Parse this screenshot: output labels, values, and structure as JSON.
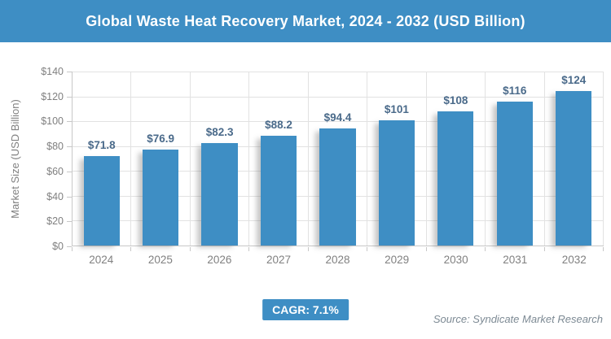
{
  "header": {
    "title": "Global Waste Heat Recovery Market, 2024 - 2032 (USD Billion)"
  },
  "chart_data": {
    "type": "bar",
    "title": "Global Waste Heat Recovery Market, 2024 - 2032 (USD Billion)",
    "categories": [
      "2024",
      "2025",
      "2026",
      "2027",
      "2028",
      "2029",
      "2030",
      "2031",
      "2032"
    ],
    "values": [
      71.8,
      76.9,
      82.3,
      88.2,
      94.4,
      101,
      108,
      116,
      124
    ],
    "value_labels": [
      "$71.8",
      "$76.9",
      "$82.3",
      "$88.2",
      "$94.4",
      "$101",
      "$108",
      "$116",
      "$124"
    ],
    "xlabel": "",
    "ylabel": "Market Size (USD Billion)",
    "ylim": [
      0,
      140
    ],
    "ytick_step": 20,
    "ytick_labels": [
      "$0",
      "$20",
      "$40",
      "$60",
      "$80",
      "$100",
      "$120",
      "$140"
    ],
    "grid": true,
    "legend": "none",
    "bar_color": "#3E8EC4"
  },
  "footer": {
    "cagr_label": "CAGR: 7.1%",
    "source": "Source: Syndicate Market Research"
  },
  "colors": {
    "accent": "#3E8EC4",
    "bar_value_label": "#4A6A8A",
    "axis_text": "#808080",
    "gridline": "#E2E2E2",
    "axis_line": "#C8C8C8",
    "source_text": "#7D8A94"
  }
}
